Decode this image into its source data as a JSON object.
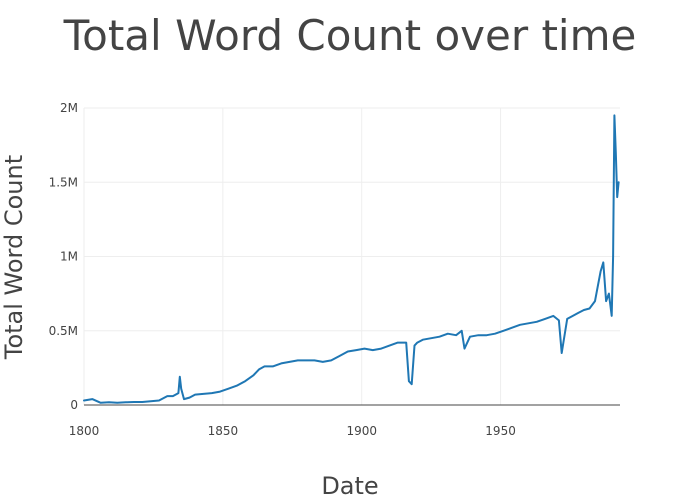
{
  "chart_data": {
    "type": "line",
    "title": "Total Word Count over time",
    "xlabel": "Date",
    "ylabel": "Total Word Count",
    "xlim": [
      1800,
      1993
    ],
    "ylim": [
      0,
      2000000
    ],
    "grid": true,
    "x_ticks": [
      {
        "value": 1800,
        "label": "1800"
      },
      {
        "value": 1850,
        "label": "1850"
      },
      {
        "value": 1900,
        "label": "1900"
      },
      {
        "value": 1950,
        "label": "1950"
      }
    ],
    "y_ticks": [
      {
        "value": 0,
        "label": "0"
      },
      {
        "value": 500000,
        "label": "0.5M"
      },
      {
        "value": 1000000,
        "label": "1M"
      },
      {
        "value": 1500000,
        "label": "1.5M"
      },
      {
        "value": 2000000,
        "label": "2M"
      }
    ],
    "colors": {
      "series": "#1f77b4"
    },
    "series": [
      {
        "x": [
          1800,
          1803,
          1806,
          1809,
          1812,
          1815,
          1818,
          1821,
          1824,
          1827,
          1830,
          1832,
          1834,
          1834.5,
          1835,
          1836,
          1838,
          1840,
          1843,
          1846,
          1849,
          1852,
          1855,
          1858,
          1861,
          1863,
          1865,
          1868,
          1871,
          1874,
          1877,
          1880,
          1883,
          1886,
          1889,
          1892,
          1895,
          1898,
          1901,
          1904,
          1907,
          1910,
          1913,
          1916,
          1917,
          1918,
          1919,
          1920,
          1922,
          1925,
          1928,
          1931,
          1934,
          1936,
          1937,
          1939,
          1942,
          1945,
          1948,
          1951,
          1954,
          1957,
          1960,
          1963,
          1966,
          1969,
          1971,
          1972,
          1974,
          1976,
          1978,
          1980,
          1982,
          1984,
          1985,
          1986,
          1987,
          1988,
          1989,
          1990,
          1990.5,
          1991,
          1991.5,
          1992,
          1992.5
        ],
        "y": [
          30000,
          40000,
          15000,
          18000,
          15000,
          18000,
          20000,
          20000,
          25000,
          30000,
          60000,
          60000,
          80000,
          190000,
          110000,
          40000,
          50000,
          70000,
          75000,
          80000,
          90000,
          110000,
          130000,
          160000,
          200000,
          240000,
          260000,
          260000,
          280000,
          290000,
          300000,
          300000,
          300000,
          290000,
          300000,
          330000,
          360000,
          370000,
          380000,
          370000,
          380000,
          400000,
          420000,
          420000,
          160000,
          140000,
          400000,
          420000,
          440000,
          450000,
          460000,
          480000,
          470000,
          500000,
          380000,
          460000,
          470000,
          470000,
          480000,
          500000,
          520000,
          540000,
          550000,
          560000,
          580000,
          600000,
          570000,
          350000,
          580000,
          600000,
          620000,
          640000,
          650000,
          700000,
          800000,
          900000,
          960000,
          700000,
          750000,
          600000,
          1000000,
          1950000,
          1700000,
          1400000,
          1500000
        ]
      }
    ]
  }
}
